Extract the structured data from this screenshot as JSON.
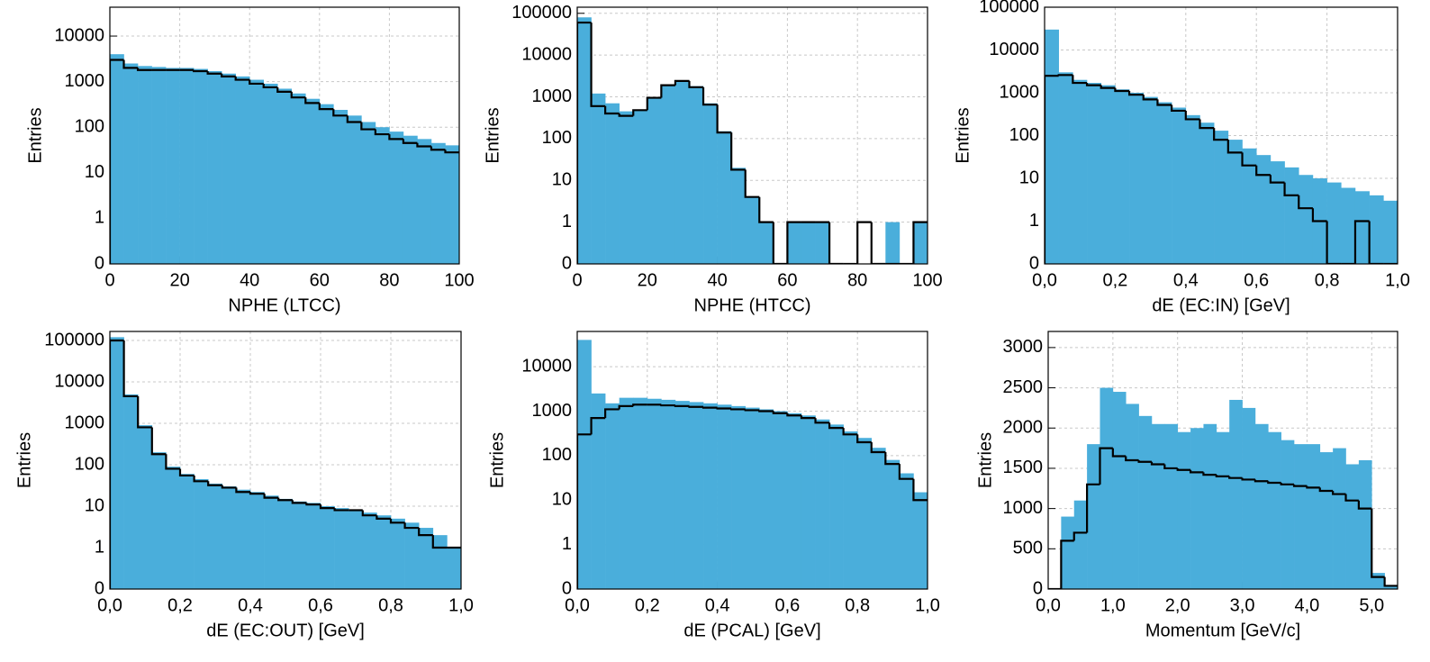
{
  "chart_data": [
    {
      "type": "histogram",
      "xlabel": "NPHE (LTCC)",
      "ylabel": "Entries",
      "yscale": "symlog",
      "bins": [
        0,
        4,
        8,
        12,
        16,
        20,
        24,
        28,
        32,
        36,
        40,
        44,
        48,
        52,
        56,
        60,
        64,
        68,
        72,
        76,
        80,
        84,
        88,
        92,
        96,
        100
      ],
      "xlim": [
        0,
        100
      ],
      "xticks": [
        0,
        20,
        40,
        60,
        80,
        100
      ],
      "ylim": [
        0,
        43000
      ],
      "yticks": [
        0,
        1,
        10,
        100,
        1000,
        10000
      ],
      "grid": true,
      "series": [
        {
          "style": "fill",
          "color": "#4aaedb",
          "values": [
            4000,
            2500,
            2200,
            2100,
            2000,
            2000,
            1900,
            1700,
            1500,
            1300,
            1100,
            900,
            700,
            550,
            420,
            320,
            240,
            180,
            130,
            100,
            80,
            65,
            55,
            45,
            40
          ]
        },
        {
          "style": "step",
          "color": "#000000",
          "values": [
            3000,
            2000,
            1800,
            1800,
            1800,
            1800,
            1700,
            1500,
            1300,
            1100,
            900,
            750,
            600,
            450,
            340,
            250,
            180,
            130,
            90,
            70,
            55,
            45,
            38,
            32,
            28
          ]
        }
      ]
    },
    {
      "type": "histogram",
      "xlabel": "NPHE (HTCC)",
      "ylabel": "Entries",
      "yscale": "symlog",
      "bins": [
        0,
        4,
        8,
        12,
        16,
        20,
        24,
        28,
        32,
        36,
        40,
        44,
        48,
        52,
        56,
        60,
        64,
        68,
        72,
        76,
        80,
        84,
        88,
        92,
        96,
        100
      ],
      "xlim": [
        0,
        100
      ],
      "xticks": [
        0,
        20,
        40,
        60,
        80,
        100
      ],
      "ylim": [
        0,
        140000
      ],
      "yticks": [
        0,
        1,
        10,
        100,
        1000,
        10000,
        100000
      ],
      "grid": true,
      "series": [
        {
          "style": "fill",
          "color": "#4aaedb",
          "values": [
            80000,
            1200,
            700,
            450,
            500,
            1000,
            2000,
            2500,
            1800,
            700,
            150,
            20,
            4,
            1,
            0,
            1,
            1,
            1,
            0,
            0,
            0,
            0,
            1,
            0,
            1
          ]
        },
        {
          "style": "step",
          "color": "#000000",
          "values": [
            60000,
            600,
            400,
            350,
            480,
            950,
            1900,
            2400,
            1700,
            650,
            140,
            18,
            4,
            1,
            0,
            1,
            1,
            1,
            0,
            0,
            1,
            0,
            0,
            0,
            1
          ]
        }
      ]
    },
    {
      "type": "histogram",
      "xlabel": "dE (EC:IN) [GeV]",
      "ylabel": "Entries",
      "yscale": "symlog",
      "bins": [
        0,
        0.04,
        0.08,
        0.12,
        0.16,
        0.2,
        0.24,
        0.28,
        0.32,
        0.36,
        0.4,
        0.44,
        0.48,
        0.52,
        0.56,
        0.6,
        0.64,
        0.68,
        0.72,
        0.76,
        0.8,
        0.84,
        0.88,
        0.92,
        0.96,
        1
      ],
      "xlim": [
        0,
        1
      ],
      "xticks": [
        {
          "value": 0,
          "label": "0,0"
        },
        {
          "value": 0.2,
          "label": "0,2"
        },
        {
          "value": 0.4,
          "label": "0,4"
        },
        {
          "value": 0.6,
          "label": "0,6"
        },
        {
          "value": 0.8,
          "label": "0,8"
        },
        {
          "value": 1,
          "label": "1,0"
        }
      ],
      "ylim": [
        0,
        100000
      ],
      "yticks": [
        0,
        1,
        10,
        100,
        1000,
        10000,
        100000
      ],
      "grid": true,
      "series": [
        {
          "style": "fill",
          "color": "#4aaedb",
          "values": [
            30000,
            3000,
            2000,
            1700,
            1500,
            1200,
            1000,
            800,
            600,
            450,
            300,
            200,
            130,
            80,
            50,
            35,
            25,
            18,
            12,
            10,
            8,
            6,
            5,
            4,
            3
          ]
        },
        {
          "style": "step",
          "color": "#000000",
          "values": [
            2500,
            2600,
            1700,
            1500,
            1300,
            1100,
            900,
            700,
            520,
            380,
            240,
            150,
            80,
            40,
            20,
            12,
            8,
            4,
            2,
            1,
            0,
            0,
            1,
            0,
            0
          ]
        }
      ]
    },
    {
      "type": "histogram",
      "xlabel": "dE (EC:OUT) [GeV]",
      "ylabel": "Entries",
      "yscale": "symlog",
      "bins": [
        0,
        0.04,
        0.08,
        0.12,
        0.16,
        0.2,
        0.24,
        0.28,
        0.32,
        0.36,
        0.4,
        0.44,
        0.48,
        0.52,
        0.56,
        0.6,
        0.64,
        0.68,
        0.72,
        0.76,
        0.8,
        0.84,
        0.88,
        0.92,
        0.96,
        1
      ],
      "xlim": [
        0,
        1
      ],
      "xticks": [
        {
          "value": 0,
          "label": "0,0"
        },
        {
          "value": 0.2,
          "label": "0,2"
        },
        {
          "value": 0.4,
          "label": "0,4"
        },
        {
          "value": 0.6,
          "label": "0,6"
        },
        {
          "value": 0.8,
          "label": "0,8"
        },
        {
          "value": 1,
          "label": "1,0"
        }
      ],
      "ylim": [
        0,
        165000
      ],
      "yticks": [
        0,
        1,
        10,
        100,
        1000,
        10000,
        100000
      ],
      "grid": true,
      "series": [
        {
          "style": "fill",
          "color": "#4aaedb",
          "values": [
            120000,
            5000,
            900,
            200,
            90,
            60,
            45,
            35,
            30,
            25,
            22,
            18,
            15,
            13,
            12,
            10,
            9,
            8,
            7,
            6,
            5,
            4,
            3,
            2,
            1
          ]
        },
        {
          "style": "step",
          "color": "#000000",
          "values": [
            100000,
            4500,
            800,
            180,
            80,
            55,
            40,
            32,
            28,
            22,
            20,
            16,
            14,
            12,
            11,
            9,
            8,
            8,
            6,
            5,
            4,
            3,
            2,
            1,
            1
          ]
        }
      ]
    },
    {
      "type": "histogram",
      "xlabel": "dE (PCAL) [GeV]",
      "ylabel": "Entries",
      "yscale": "symlog",
      "bins": [
        0,
        0.04,
        0.08,
        0.12,
        0.16,
        0.2,
        0.24,
        0.28,
        0.32,
        0.36,
        0.4,
        0.44,
        0.48,
        0.52,
        0.56,
        0.6,
        0.64,
        0.68,
        0.72,
        0.76,
        0.8,
        0.84,
        0.88,
        0.92,
        0.96,
        1
      ],
      "xlim": [
        0,
        1
      ],
      "xticks": [
        {
          "value": 0,
          "label": "0,0"
        },
        {
          "value": 0.2,
          "label": "0,2"
        },
        {
          "value": 0.4,
          "label": "0,4"
        },
        {
          "value": 0.6,
          "label": "0,6"
        },
        {
          "value": 0.8,
          "label": "0,8"
        },
        {
          "value": 1,
          "label": "1,0"
        }
      ],
      "ylim": [
        0,
        62000
      ],
      "yticks": [
        0,
        1,
        10,
        100,
        1000,
        10000
      ],
      "grid": true,
      "series": [
        {
          "style": "fill",
          "color": "#4aaedb",
          "values": [
            40000,
            2500,
            1500,
            2000,
            2000,
            1900,
            1800,
            1700,
            1600,
            1500,
            1400,
            1300,
            1200,
            1100,
            1000,
            900,
            800,
            650,
            500,
            350,
            250,
            150,
            80,
            40,
            15
          ]
        },
        {
          "style": "step",
          "color": "#000000",
          "values": [
            300,
            700,
            1100,
            1300,
            1400,
            1400,
            1350,
            1300,
            1250,
            1200,
            1150,
            1100,
            1050,
            1000,
            900,
            800,
            700,
            550,
            420,
            300,
            200,
            120,
            65,
            30,
            10
          ]
        }
      ]
    },
    {
      "type": "histogram",
      "xlabel": "Momentum [GeV/c]",
      "ylabel": "Entries",
      "yscale": "linear",
      "bins": [
        0,
        0.2,
        0.4,
        0.6,
        0.8,
        1,
        1.2,
        1.4,
        1.6,
        1.8,
        2,
        2.2,
        2.4,
        2.6,
        2.8,
        3,
        3.2,
        3.4,
        3.6,
        3.8,
        4,
        4.2,
        4.4,
        4.6,
        4.8,
        5,
        5.2,
        5.4
      ],
      "xlim": [
        0,
        5.4
      ],
      "xticks": [
        {
          "value": 0,
          "label": "0,0"
        },
        {
          "value": 1,
          "label": "1,0"
        },
        {
          "value": 2,
          "label": "2,0"
        },
        {
          "value": 3,
          "label": "3,0"
        },
        {
          "value": 4,
          "label": "4,0"
        },
        {
          "value": 5,
          "label": "5,0"
        }
      ],
      "ylim": [
        0,
        3200
      ],
      "yticks": [
        0,
        500,
        1000,
        1500,
        2000,
        2500,
        3000
      ],
      "grid": true,
      "series": [
        {
          "style": "fill",
          "color": "#4aaedb",
          "values": [
            0,
            900,
            1100,
            1800,
            2500,
            2450,
            2300,
            2150,
            2050,
            2050,
            1950,
            2000,
            2050,
            1950,
            2350,
            2250,
            2050,
            1950,
            1850,
            1800,
            1800,
            1700,
            1750,
            1550,
            1600,
            200,
            50
          ]
        },
        {
          "style": "step",
          "color": "#000000",
          "values": [
            0,
            600,
            700,
            1300,
            1750,
            1650,
            1600,
            1580,
            1550,
            1500,
            1480,
            1450,
            1420,
            1400,
            1380,
            1360,
            1340,
            1320,
            1300,
            1280,
            1260,
            1220,
            1180,
            1100,
            1000,
            150,
            40
          ]
        }
      ]
    }
  ]
}
